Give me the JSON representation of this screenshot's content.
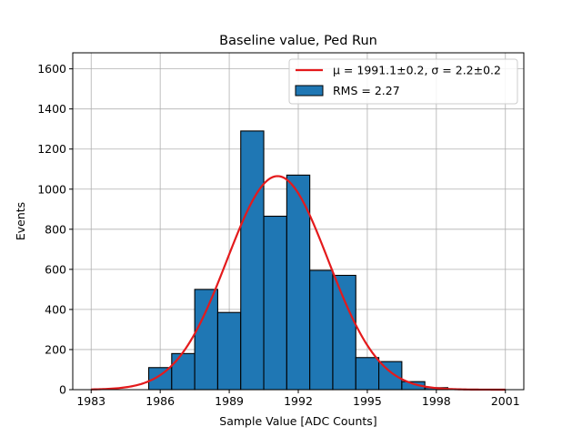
{
  "chart_data": {
    "type": "bar",
    "title": "Baseline value, Ped Run",
    "xlabel": "Sample Value [ADC Counts]",
    "ylabel": "Events",
    "xlim": [
      1982.2,
      2001.8
    ],
    "ylim": [
      0,
      1680
    ],
    "grid": true,
    "legend_position": "top-right",
    "x_ticks": [
      1983,
      1986,
      1989,
      1992,
      1995,
      1998,
      2001
    ],
    "y_ticks": [
      0,
      200,
      400,
      600,
      800,
      1000,
      1200,
      1400,
      1600
    ],
    "bar_color": "#1f77b4",
    "fit_color": "#e41a1c",
    "histogram": {
      "name": "RMS = 2.27",
      "bin_width": 1,
      "bins": [
        {
          "x": 1986,
          "value": 110
        },
        {
          "x": 1987,
          "value": 180
        },
        {
          "x": 1988,
          "value": 500
        },
        {
          "x": 1989,
          "value": 385
        },
        {
          "x": 1990,
          "value": 1290
        },
        {
          "x": 1991,
          "value": 865
        },
        {
          "x": 1992,
          "value": 1070
        },
        {
          "x": 1993,
          "value": 595
        },
        {
          "x": 1994,
          "value": 570
        },
        {
          "x": 1995,
          "value": 160
        },
        {
          "x": 1996,
          "value": 140
        },
        {
          "x": 1997,
          "value": 40
        },
        {
          "x": 1998,
          "value": 10
        }
      ]
    },
    "fit": {
      "name": "μ = 1991.1±0.2, σ = 2.2±0.2",
      "mu": 1991.1,
      "sigma": 2.2,
      "amplitude": 1065,
      "x_range": [
        1983,
        2001
      ]
    },
    "legend": [
      {
        "type": "line",
        "label": "μ = 1991.1±0.2, σ = 2.2±0.2"
      },
      {
        "type": "patch",
        "label": "RMS = 2.27"
      }
    ]
  }
}
